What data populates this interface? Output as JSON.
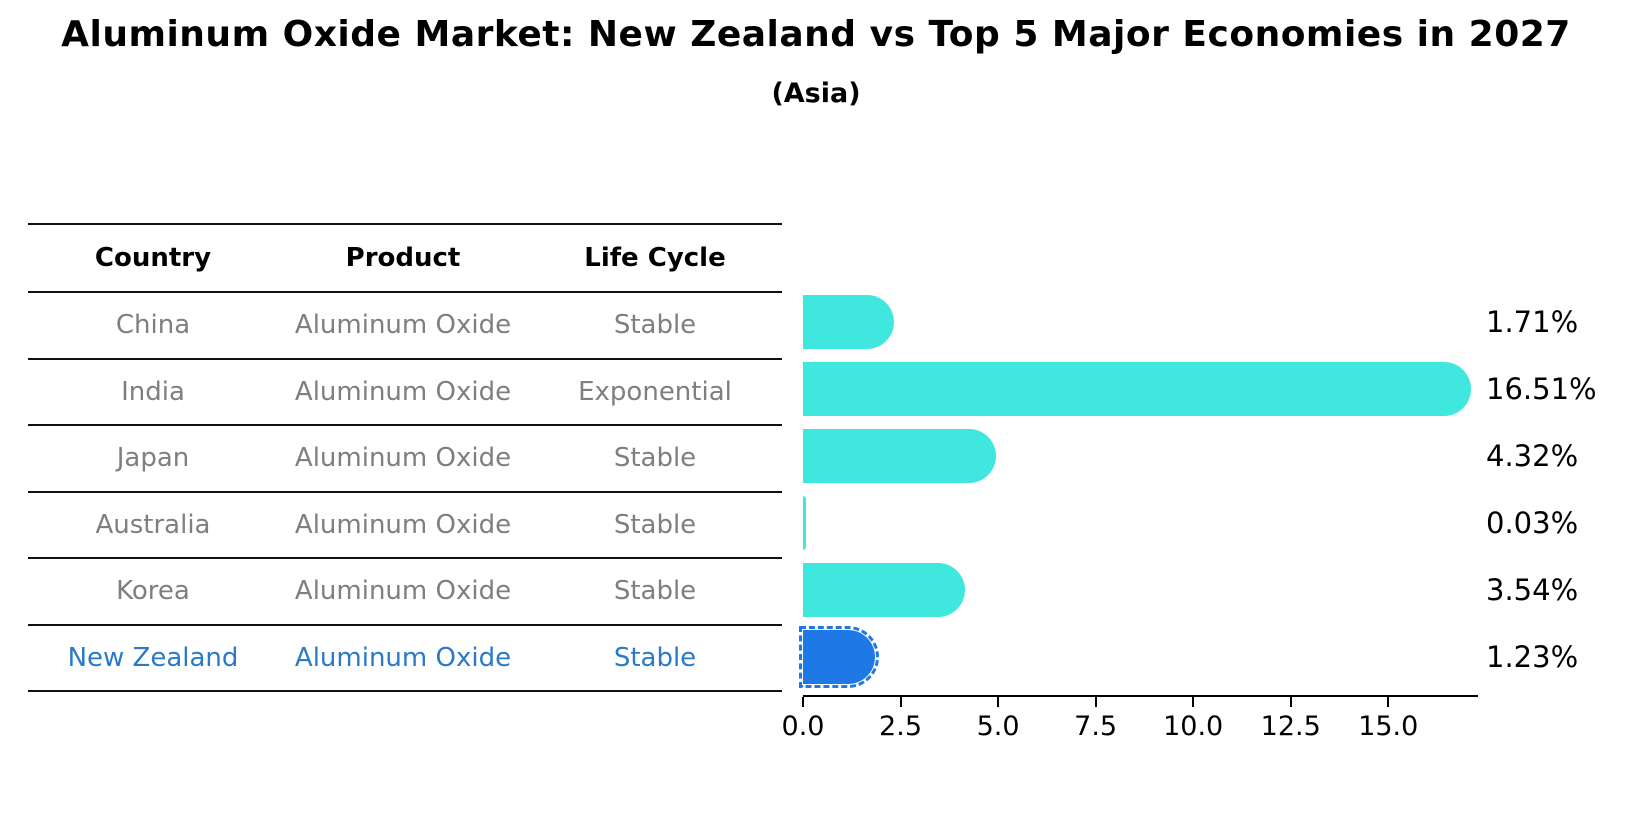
{
  "title": "Aluminum Oxide Market: New Zealand vs Top 5 Major Economies in 2027",
  "subtitle": "(Asia)",
  "table": {
    "headers": [
      "Country",
      "Product",
      "Life Cycle"
    ],
    "rows": [
      {
        "country": "China",
        "product": "Aluminum Oxide",
        "life_cycle": "Stable",
        "highlight": false
      },
      {
        "country": "India",
        "product": "Aluminum Oxide",
        "life_cycle": "Exponential",
        "highlight": false
      },
      {
        "country": "Japan",
        "product": "Aluminum Oxide",
        "life_cycle": "Stable",
        "highlight": false
      },
      {
        "country": "Australia",
        "product": "Aluminum Oxide",
        "life_cycle": "Stable",
        "highlight": false
      },
      {
        "country": "Korea",
        "product": "Aluminum Oxide",
        "life_cycle": "Stable",
        "highlight": false
      },
      {
        "country": "New Zealand",
        "product": "Aluminum Oxide",
        "life_cycle": "Stable",
        "highlight": true
      }
    ]
  },
  "chart_data": {
    "type": "bar",
    "orientation": "horizontal",
    "title": "Aluminum Oxide Market: New Zealand vs Top 5 Major Economies in 2027 (Asia)",
    "xlabel": "",
    "ylabel": "",
    "categories": [
      "China",
      "India",
      "Japan",
      "Australia",
      "Korea",
      "New Zealand"
    ],
    "values": [
      1.71,
      16.51,
      4.32,
      0.03,
      3.54,
      1.23
    ],
    "value_labels": [
      "1.71%",
      "16.51%",
      "4.32%",
      "0.03%",
      "3.54%",
      "1.23%"
    ],
    "xticks": [
      0.0,
      2.5,
      5.0,
      7.5,
      10.0,
      12.5,
      15.0
    ],
    "xtick_labels": [
      "0.0",
      "2.5",
      "5.0",
      "7.5",
      "10.0",
      "12.5",
      "15.0"
    ],
    "xlim": [
      0,
      17.3
    ],
    "grid": false,
    "legend": false,
    "highlight_index": 5
  },
  "colors": {
    "bar_default": "#40E7DF",
    "bar_highlight": "#1E79E6",
    "highlight_text": "#2A7AC9",
    "table_text": "#7F7F7F",
    "axis": "#000000"
  }
}
